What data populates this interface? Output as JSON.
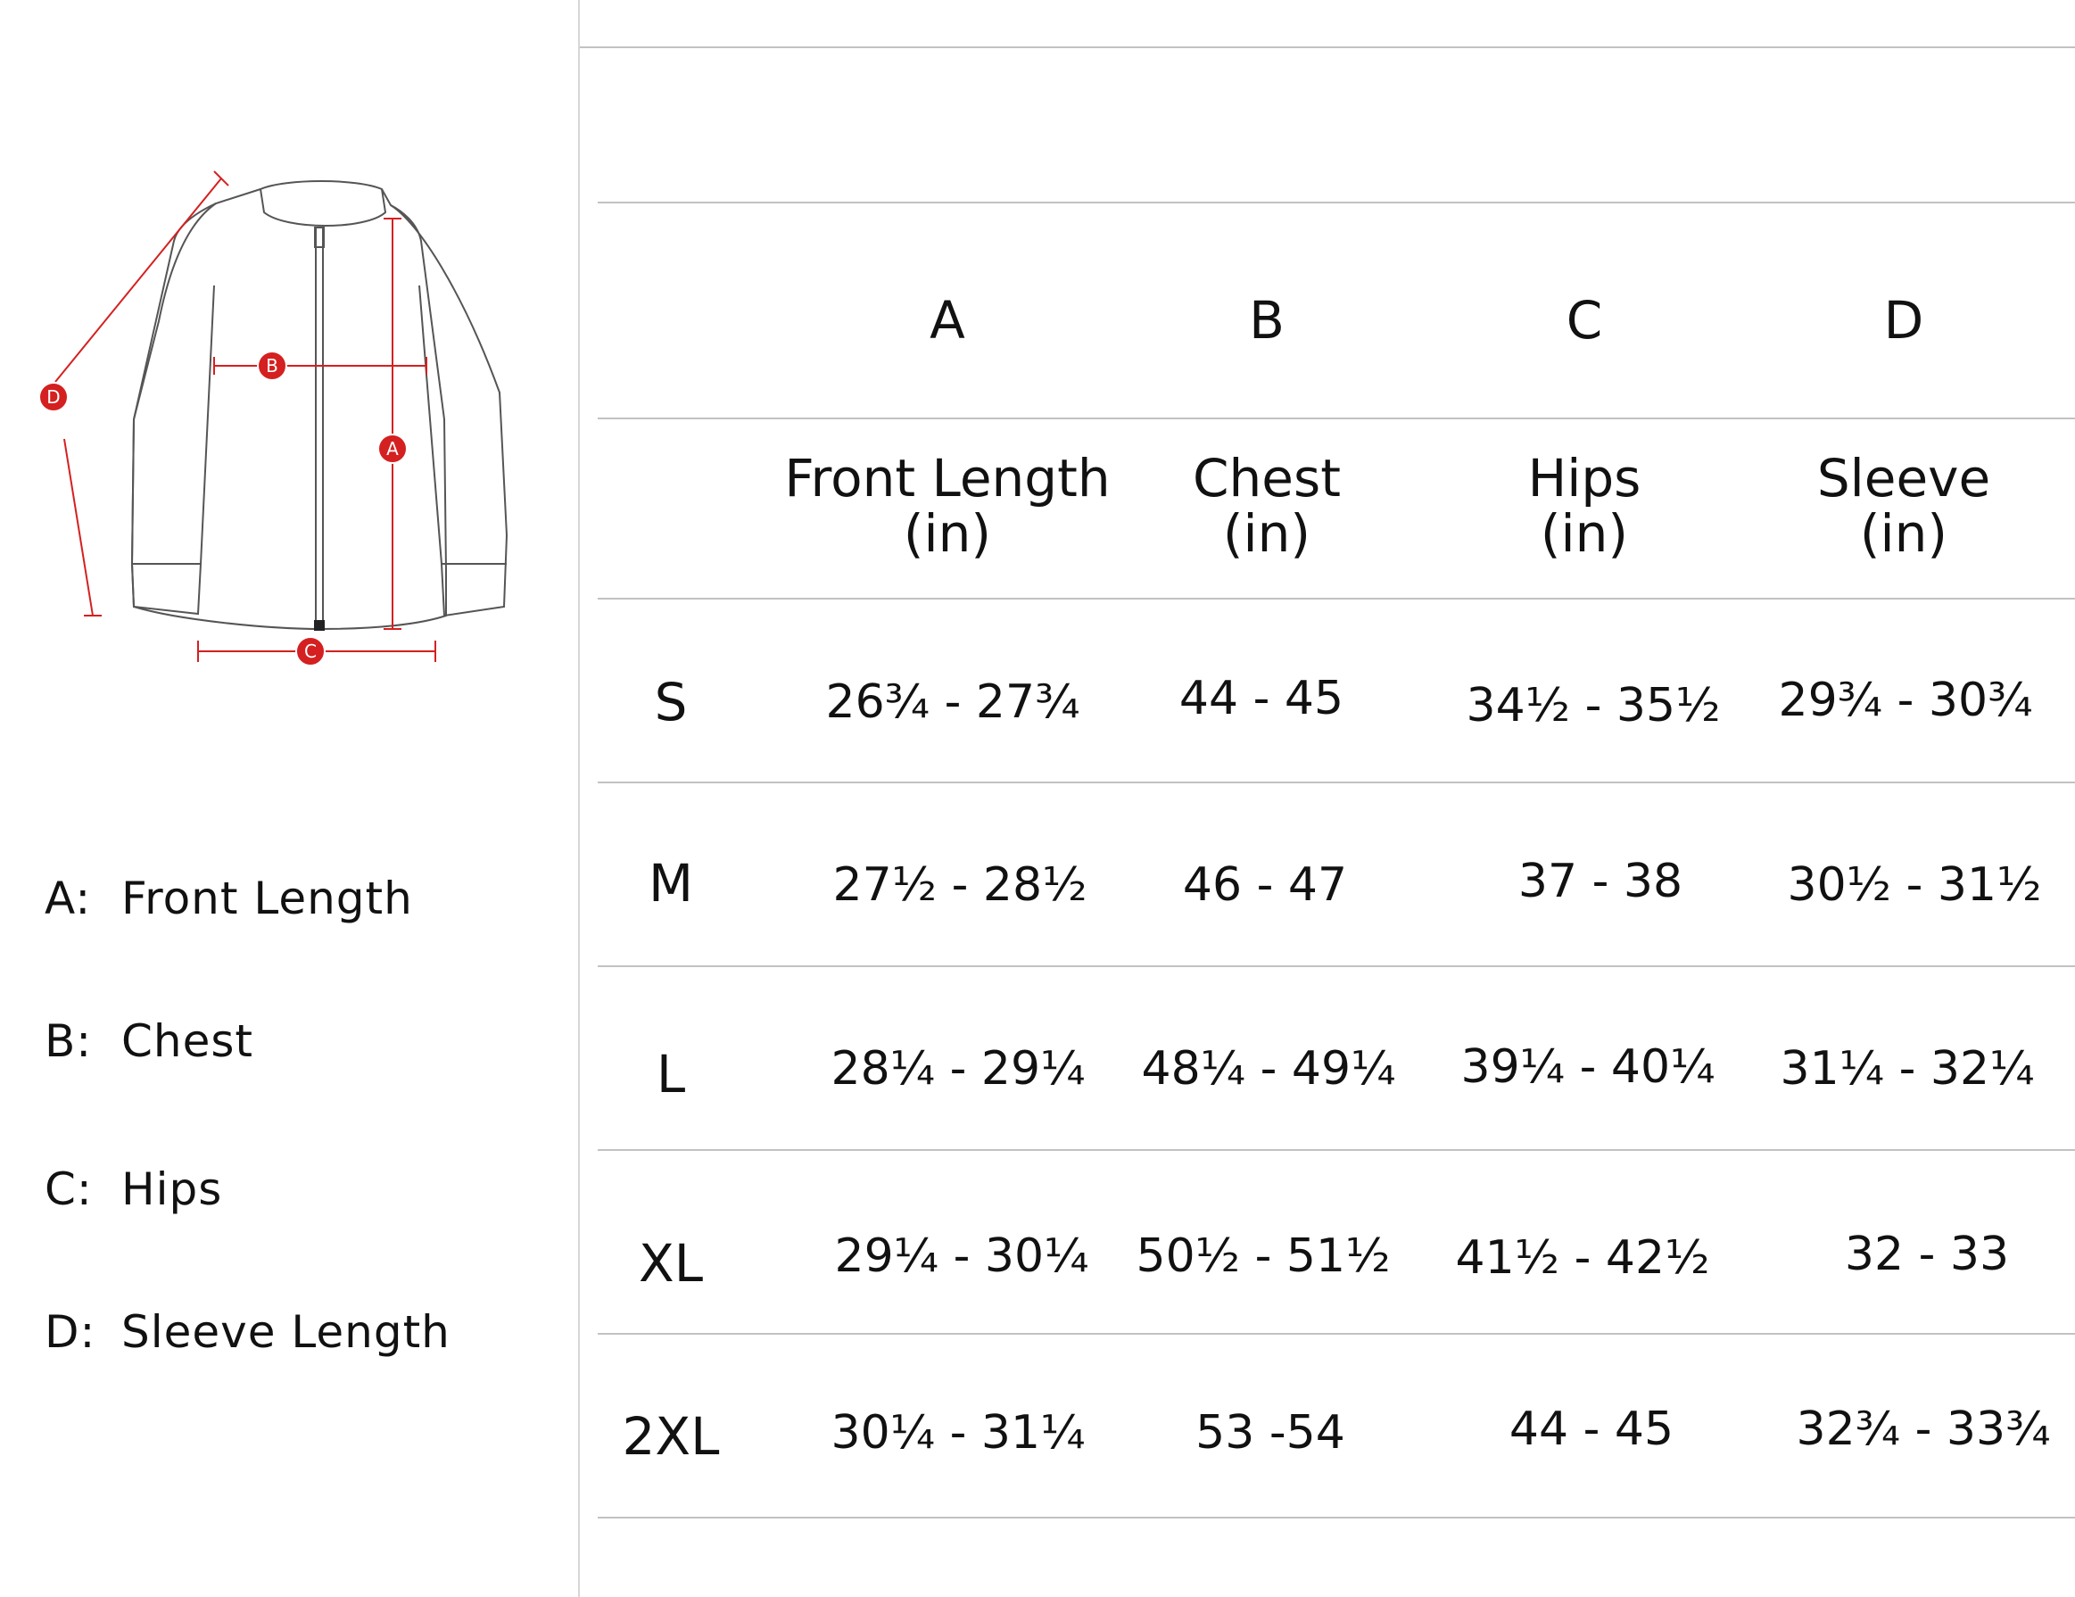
{
  "diagram": {
    "markers": [
      "A",
      "B",
      "C",
      "D"
    ]
  },
  "legend": [
    {
      "key": "A:",
      "label": "Front Length"
    },
    {
      "key": "B:",
      "label": "Chest"
    },
    {
      "key": "C:",
      "label": "Hips"
    },
    {
      "key": "D:",
      "label": "Sleeve Length"
    }
  ],
  "table": {
    "column_letters": [
      "A",
      "B",
      "C",
      "D"
    ],
    "column_names": [
      {
        "line1": "Front Length",
        "line2": "(in)"
      },
      {
        "line1": "Chest",
        "line2": "(in)"
      },
      {
        "line1": "Hips",
        "line2": "(in)"
      },
      {
        "line1": "Sleeve",
        "line2": "(in)"
      }
    ],
    "rows": [
      {
        "size": "S",
        "values": [
          "26¾ - 27¾",
          "44 - 45",
          "34½ - 35½",
          "29¾ - 30¾"
        ]
      },
      {
        "size": "M",
        "values": [
          "27½ - 28½",
          "46 - 47",
          "37 - 38",
          "30½ - 31½"
        ]
      },
      {
        "size": "L",
        "values": [
          "28¼ - 29¼",
          "48¼ - 49¼",
          "39¼ - 40¼",
          "31¼ - 32¼"
        ]
      },
      {
        "size": "XL",
        "values": [
          "29¼ - 30¼",
          "50½ - 51½",
          "41½ - 42½",
          "32 - 33"
        ]
      },
      {
        "size": "2XL",
        "values": [
          "30¼ - 31¼",
          "53 -54",
          "44 - 45",
          "32¾ - 33¾"
        ]
      }
    ]
  },
  "colors": {
    "marker": "#d42020",
    "line": "#c2c2c2",
    "text": "#111111"
  }
}
